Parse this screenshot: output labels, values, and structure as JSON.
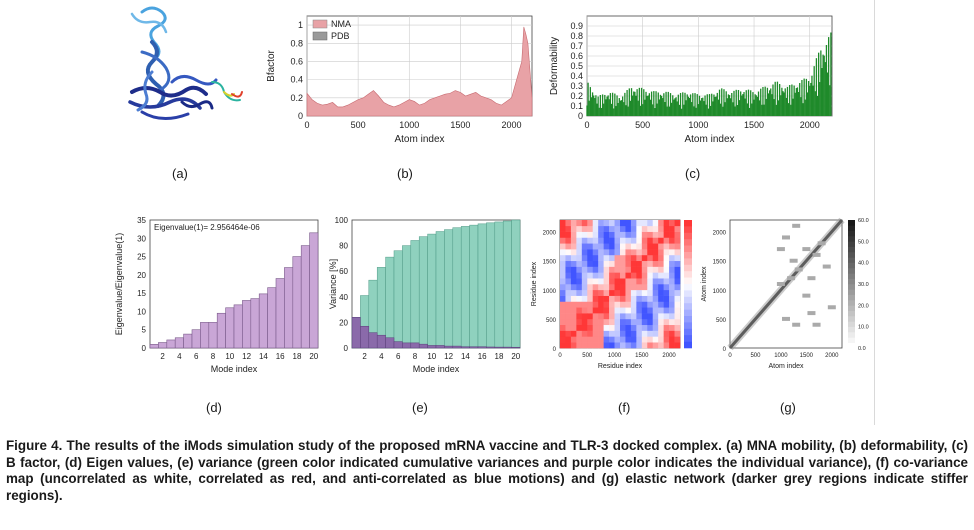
{
  "figure": {
    "caption_title": "Figure 4. The results of the iMods simulation study of the proposed mRNA vaccine and TLR-3 docked complex.",
    "caption_body": "(a) MNA mobility, (b) deformability, (c) B factor, (d) Eigen values, (e) variance (green color indicated cumulative variances and purple color indicates the individual variance), (f) co-variance map (uncorrelated as white, correlated as red, and anti-correlated as blue motions) and (g) elastic network (darker grey regions indicate stiffer regions).",
    "labels": {
      "a": "(a)",
      "b": "(b)",
      "c": "(c)",
      "d": "(d)",
      "e": "(e)",
      "f": "(f)",
      "g": "(g)"
    }
  },
  "colors": {
    "nma": "#e8a2a6",
    "pdb": "#9a9a9a",
    "deform": "#1f8a2a",
    "eigen": "#c9a6d6",
    "cum": "#8fd1be",
    "indiv": "#8a6aaa"
  },
  "chart_data": [
    {
      "id": "b",
      "type": "area",
      "xlabel": "Atom index",
      "ylabel": "Bfactor",
      "xlim": [
        0,
        2200
      ],
      "ylim": [
        0,
        1.1
      ],
      "xticks": [
        0,
        500,
        1000,
        1500,
        2000
      ],
      "yticks": [
        0,
        0.2,
        0.4,
        0.6,
        0.8,
        1
      ],
      "legend": [
        "NMA",
        "PDB"
      ],
      "series": [
        {
          "name": "NMA",
          "x": [
            0,
            50,
            100,
            150,
            200,
            250,
            300,
            350,
            400,
            450,
            500,
            550,
            600,
            650,
            700,
            750,
            800,
            850,
            900,
            950,
            1000,
            1050,
            1100,
            1150,
            1200,
            1250,
            1300,
            1350,
            1400,
            1450,
            1500,
            1550,
            1600,
            1650,
            1700,
            1750,
            1800,
            1850,
            1900,
            1950,
            2000,
            2050,
            2100,
            2120,
            2140,
            2160,
            2180,
            2200
          ],
          "y": [
            0.25,
            0.18,
            0.14,
            0.12,
            0.13,
            0.15,
            0.1,
            0.1,
            0.12,
            0.15,
            0.18,
            0.2,
            0.24,
            0.28,
            0.22,
            0.15,
            0.12,
            0.1,
            0.12,
            0.15,
            0.18,
            0.16,
            0.12,
            0.14,
            0.18,
            0.2,
            0.22,
            0.24,
            0.25,
            0.28,
            0.26,
            0.22,
            0.24,
            0.26,
            0.22,
            0.2,
            0.18,
            0.14,
            0.12,
            0.16,
            0.2,
            0.4,
            0.6,
            0.98,
            0.9,
            0.8,
            0.5,
            0.2
          ]
        }
      ]
    },
    {
      "id": "c",
      "type": "bar",
      "xlabel": "Atom index",
      "ylabel": "Deformability",
      "xlim": [
        0,
        2200
      ],
      "ylim": [
        0,
        1
      ],
      "xticks": [
        0,
        500,
        1000,
        1500,
        2000
      ],
      "yticks": [
        0,
        0.1,
        0.2,
        0.3,
        0.4,
        0.5,
        0.6,
        0.7,
        0.8,
        0.9
      ],
      "series": [
        {
          "name": "",
          "x": [
            0,
            100,
            200,
            300,
            400,
            500,
            600,
            700,
            800,
            900,
            1000,
            1100,
            1200,
            1300,
            1400,
            1500,
            1600,
            1700,
            1800,
            1900,
            2000,
            2100,
            2200
          ],
          "y": [
            0.35,
            0.2,
            0.25,
            0.2,
            0.3,
            0.28,
            0.25,
            0.25,
            0.22,
            0.25,
            0.22,
            0.22,
            0.28,
            0.25,
            0.28,
            0.25,
            0.3,
            0.35,
            0.3,
            0.35,
            0.4,
            0.7,
            0.85
          ]
        }
      ]
    },
    {
      "id": "d",
      "type": "bar",
      "xlabel": "Mode index",
      "ylabel": "Eigenvalue/Eigenvalue(1)",
      "annotation": "Eigenvalue(1)= 2.956464e-06",
      "xlim": [
        0.5,
        20.5
      ],
      "ylim": [
        0,
        35
      ],
      "xticks": [
        2,
        4,
        6,
        8,
        10,
        12,
        14,
        16,
        18,
        20
      ],
      "yticks": [
        0,
        5,
        10,
        15,
        20,
        25,
        30,
        35
      ],
      "categories": [
        1,
        2,
        3,
        4,
        5,
        6,
        7,
        8,
        9,
        10,
        11,
        12,
        13,
        14,
        15,
        16,
        17,
        18,
        19,
        20
      ],
      "values": [
        1,
        1.5,
        2.2,
        2.8,
        3.8,
        5,
        7,
        7,
        9.5,
        11,
        11.8,
        13,
        13.5,
        14.8,
        16.5,
        19,
        22,
        25,
        28,
        31.5
      ]
    },
    {
      "id": "e",
      "type": "bar",
      "xlabel": "Mode index",
      "ylabel": "Variance [%]",
      "xlim": [
        0.5,
        20.5
      ],
      "ylim": [
        0,
        100
      ],
      "xticks": [
        2,
        4,
        6,
        8,
        10,
        12,
        14,
        16,
        18,
        20
      ],
      "yticks": [
        0,
        20,
        40,
        60,
        80,
        100
      ],
      "categories": [
        1,
        2,
        3,
        4,
        5,
        6,
        7,
        8,
        9,
        10,
        11,
        12,
        13,
        14,
        15,
        16,
        17,
        18,
        19,
        20
      ],
      "series": [
        {
          "name": "",
          "values": [
            24,
            41,
            53,
            63,
            71,
            76,
            80,
            84,
            87,
            89,
            91,
            92.5,
            94,
            95,
            96,
            97,
            97.8,
            98.5,
            99.2,
            100
          ]
        },
        {
          "name": "",
          "values": [
            24,
            17,
            12,
            10,
            8,
            5,
            4,
            4,
            3,
            2,
            2,
            1.5,
            1.5,
            1,
            1,
            1,
            0.8,
            0.7,
            0.7,
            0.6
          ]
        }
      ]
    },
    {
      "id": "f",
      "type": "heatmap",
      "xlabel": "Residue index",
      "ylabel": "Residue index",
      "xlim": [
        0,
        2200
      ],
      "ylim": [
        0,
        2200
      ],
      "xticks": [
        0,
        500,
        1000,
        1500,
        2000
      ],
      "yticks": [
        0,
        500,
        1000,
        1500,
        2000
      ]
    },
    {
      "id": "g",
      "type": "heatmap",
      "xlabel": "Atom index",
      "ylabel": "Atom index",
      "xlim": [
        0,
        2200
      ],
      "ylim": [
        0,
        2200
      ],
      "xticks": [
        0,
        500,
        1000,
        1500,
        2000
      ],
      "yticks": [
        0,
        500,
        1000,
        1500,
        2000
      ],
      "colorbar": [
        0.0,
        10.0,
        20.0,
        30.0,
        40.0,
        50.0,
        60.0
      ]
    }
  ]
}
